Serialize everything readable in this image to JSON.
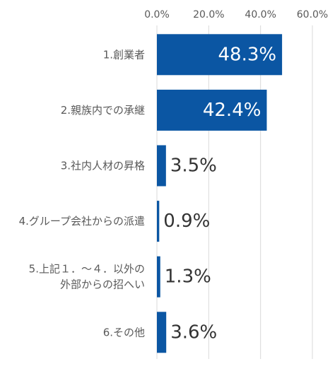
{
  "chart_data": {
    "type": "bar",
    "orientation": "horizontal",
    "categories": [
      [
        "1.創業者"
      ],
      [
        "2.親族内での承継"
      ],
      [
        "3.社内人材の昇格"
      ],
      [
        "4.グループ会社からの派遣"
      ],
      [
        "5.上記１．～４．以外の",
        "外部からの招へい"
      ],
      [
        "6.その他"
      ]
    ],
    "values": [
      48.3,
      42.4,
      3.5,
      0.9,
      1.3,
      3.6
    ],
    "value_labels": [
      "48.3%",
      "42.4%",
      "3.5%",
      "0.9%",
      "1.3%",
      "3.6%"
    ],
    "xlim": [
      0,
      60
    ],
    "x_ticks": [
      0,
      20,
      40,
      60
    ],
    "x_tick_labels": [
      "0.0%",
      "20.0%",
      "40.0%",
      "60.0%"
    ],
    "grid": "vertical",
    "colors": {
      "bar": "#0B56A3",
      "grid": "#D9D9D9",
      "axis_text": "#595959",
      "label_inside": "#FFFFFF",
      "label_outside": "#333333"
    }
  }
}
